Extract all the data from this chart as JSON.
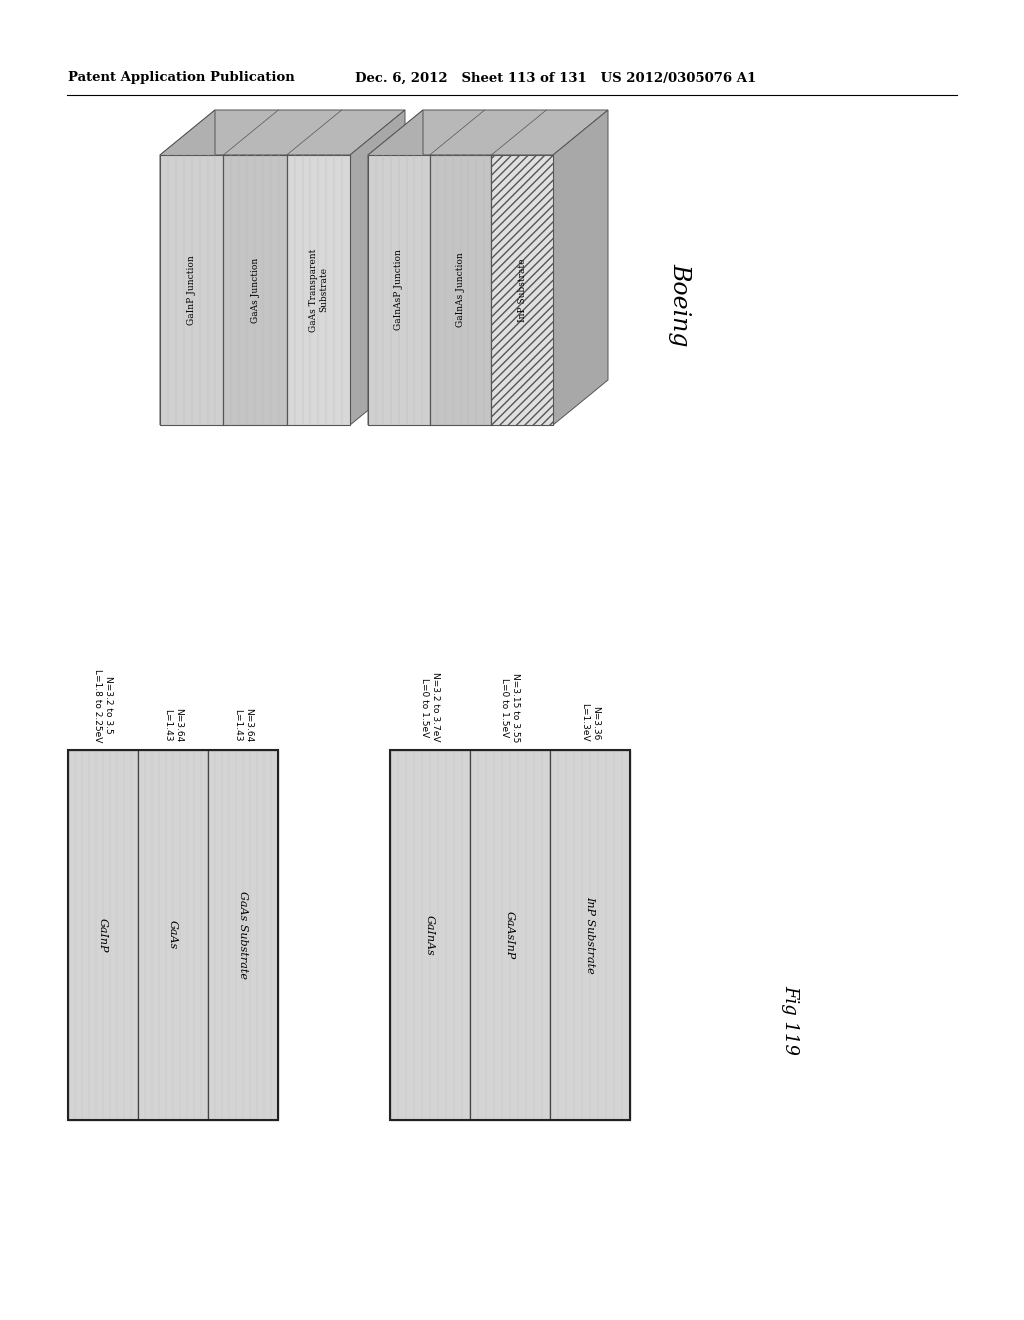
{
  "header_left": "Patent Application Publication",
  "header_mid": "Dec. 6, 2012   Sheet 113 of 131   US 2012/0305076 A1",
  "fig_label": "Fig 119",
  "boeing_label": "Boeing",
  "top_diagram": {
    "left_block_layers": [
      "GaInP Junction",
      "GaAs Junction",
      "GaAs Transparent\nSubstrate"
    ],
    "right_block_layers": [
      "GaInAsP Junction",
      "GaInAs Junction",
      "InP Substrate"
    ]
  },
  "bottom_left": {
    "layers": [
      "GaInP",
      "GaAs",
      "GaAs Substrate"
    ],
    "annotations": [
      "N=3.2 to 3.5\nL=1.8 to 2.25eV",
      "N=3.64\nL=1.43",
      "N=3.64\nL=1.43"
    ]
  },
  "bottom_right": {
    "layers": [
      "GaInAs",
      "GaAsInP",
      "InP Substrate"
    ],
    "annotations": [
      "N=3.2 to 3.7eV\nL=0 to 1.5eV",
      "N=3.15 to 3.55\nL=0 to 1.5eV",
      "N=3.36\nL=1.3eV"
    ]
  },
  "bg_color": "#ffffff",
  "layer_fill_light": "#d8d8d8",
  "layer_fill_dark": "#c0c0c0",
  "layer_edge": "#444444"
}
